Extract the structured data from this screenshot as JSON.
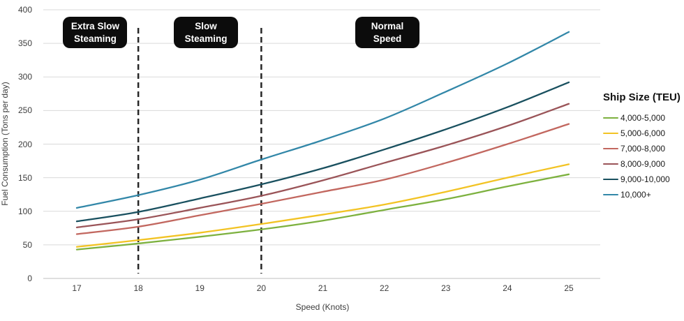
{
  "page": {
    "background": "#ffffff"
  },
  "legend": {
    "title": "Ship Size (TEU)"
  },
  "colors": {
    "grid_line": "#d9d9d9",
    "axis_line": "#bfbfbf",
    "tick_text": "#3d3d3d",
    "zone_divider": "#262626",
    "zone_box_background": "#0c0c0c",
    "zone_box_text": "#ffffff"
  },
  "chart_data": {
    "type": "line",
    "title": "",
    "xlabel": "Speed (Knots)",
    "ylabel": "Fuel Consumption (Tons per day)",
    "x": [
      17,
      18,
      19,
      20,
      21,
      22,
      23,
      24,
      25
    ],
    "x_ticks": [
      "17",
      "18",
      "19",
      "20",
      "21",
      "22",
      "23",
      "24",
      "25"
    ],
    "y_ticks": [
      "0",
      "50",
      "100",
      "150",
      "200",
      "250",
      "300",
      "350",
      "400"
    ],
    "xlim": [
      16.45,
      25.51
    ],
    "ylim": [
      0,
      400
    ],
    "grid": "horizontal",
    "legend_title": "Ship Size (TEU)",
    "legend_position": "right-middle",
    "series": [
      {
        "name": "4,000-5,000",
        "color": "#7db13f",
        "values": [
          43,
          52,
          62,
          73,
          86,
          102,
          118,
          137,
          155
        ]
      },
      {
        "name": "5,000-6,000",
        "color": "#f2c324",
        "values": [
          47,
          57,
          68,
          81,
          95,
          110,
          129,
          150,
          170
        ]
      },
      {
        "name": "7,000-8,000",
        "color": "#c2675f",
        "values": [
          66,
          77,
          94,
          111,
          129,
          147,
          172,
          200,
          230
        ]
      },
      {
        "name": "8,000-9,000",
        "color": "#9a5458",
        "values": [
          76,
          88,
          105,
          123,
          146,
          172,
          198,
          227,
          260
        ]
      },
      {
        "name": "9,000-10,000",
        "color": "#19505f",
        "values": [
          85,
          99,
          119,
          140,
          164,
          192,
          222,
          255,
          292
        ]
      },
      {
        "name": "10,000+",
        "color": "#3287a8",
        "values": [
          105,
          124,
          147,
          177,
          206,
          238,
          278,
          320,
          367
        ]
      }
    ],
    "zone_dividers_x": [
      18,
      20
    ],
    "zones": [
      {
        "lines": [
          "Extra Slow",
          "Steaming"
        ],
        "x_center": 17.3
      },
      {
        "lines": [
          "Slow",
          "Steaming"
        ],
        "x_center": 19.1
      },
      {
        "lines": [
          "Normal",
          "Speed"
        ],
        "x_center": 22.05
      }
    ]
  }
}
